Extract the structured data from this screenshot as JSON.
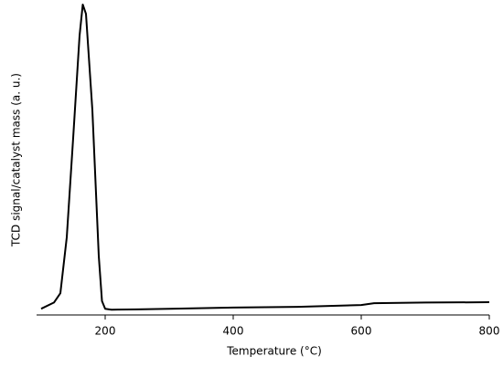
{
  "chart_data": {
    "type": "line",
    "xlabel": "Temperature (°C)",
    "ylabel": "TCD signal/catalyst mass (a. u.)",
    "x": [
      100,
      120,
      130,
      140,
      150,
      160,
      165,
      170,
      180,
      190,
      195,
      200,
      210,
      250,
      300,
      400,
      500,
      550,
      600,
      620,
      700,
      800
    ],
    "series": [
      {
        "name": "TCD signal",
        "color": "#000000",
        "values": [
          2,
          4,
          7,
          25,
          57,
          90,
          100,
          97,
          66,
          19,
          4.5,
          2,
          1.7,
          1.8,
          2,
          2.4,
          2.6,
          2.9,
          3.2,
          3.8,
          4,
          4.1
        ]
      }
    ],
    "xlim": [
      100,
      800
    ],
    "xticks": [
      200,
      400,
      600,
      800
    ],
    "ylim": [
      0,
      100
    ],
    "grid": false
  }
}
